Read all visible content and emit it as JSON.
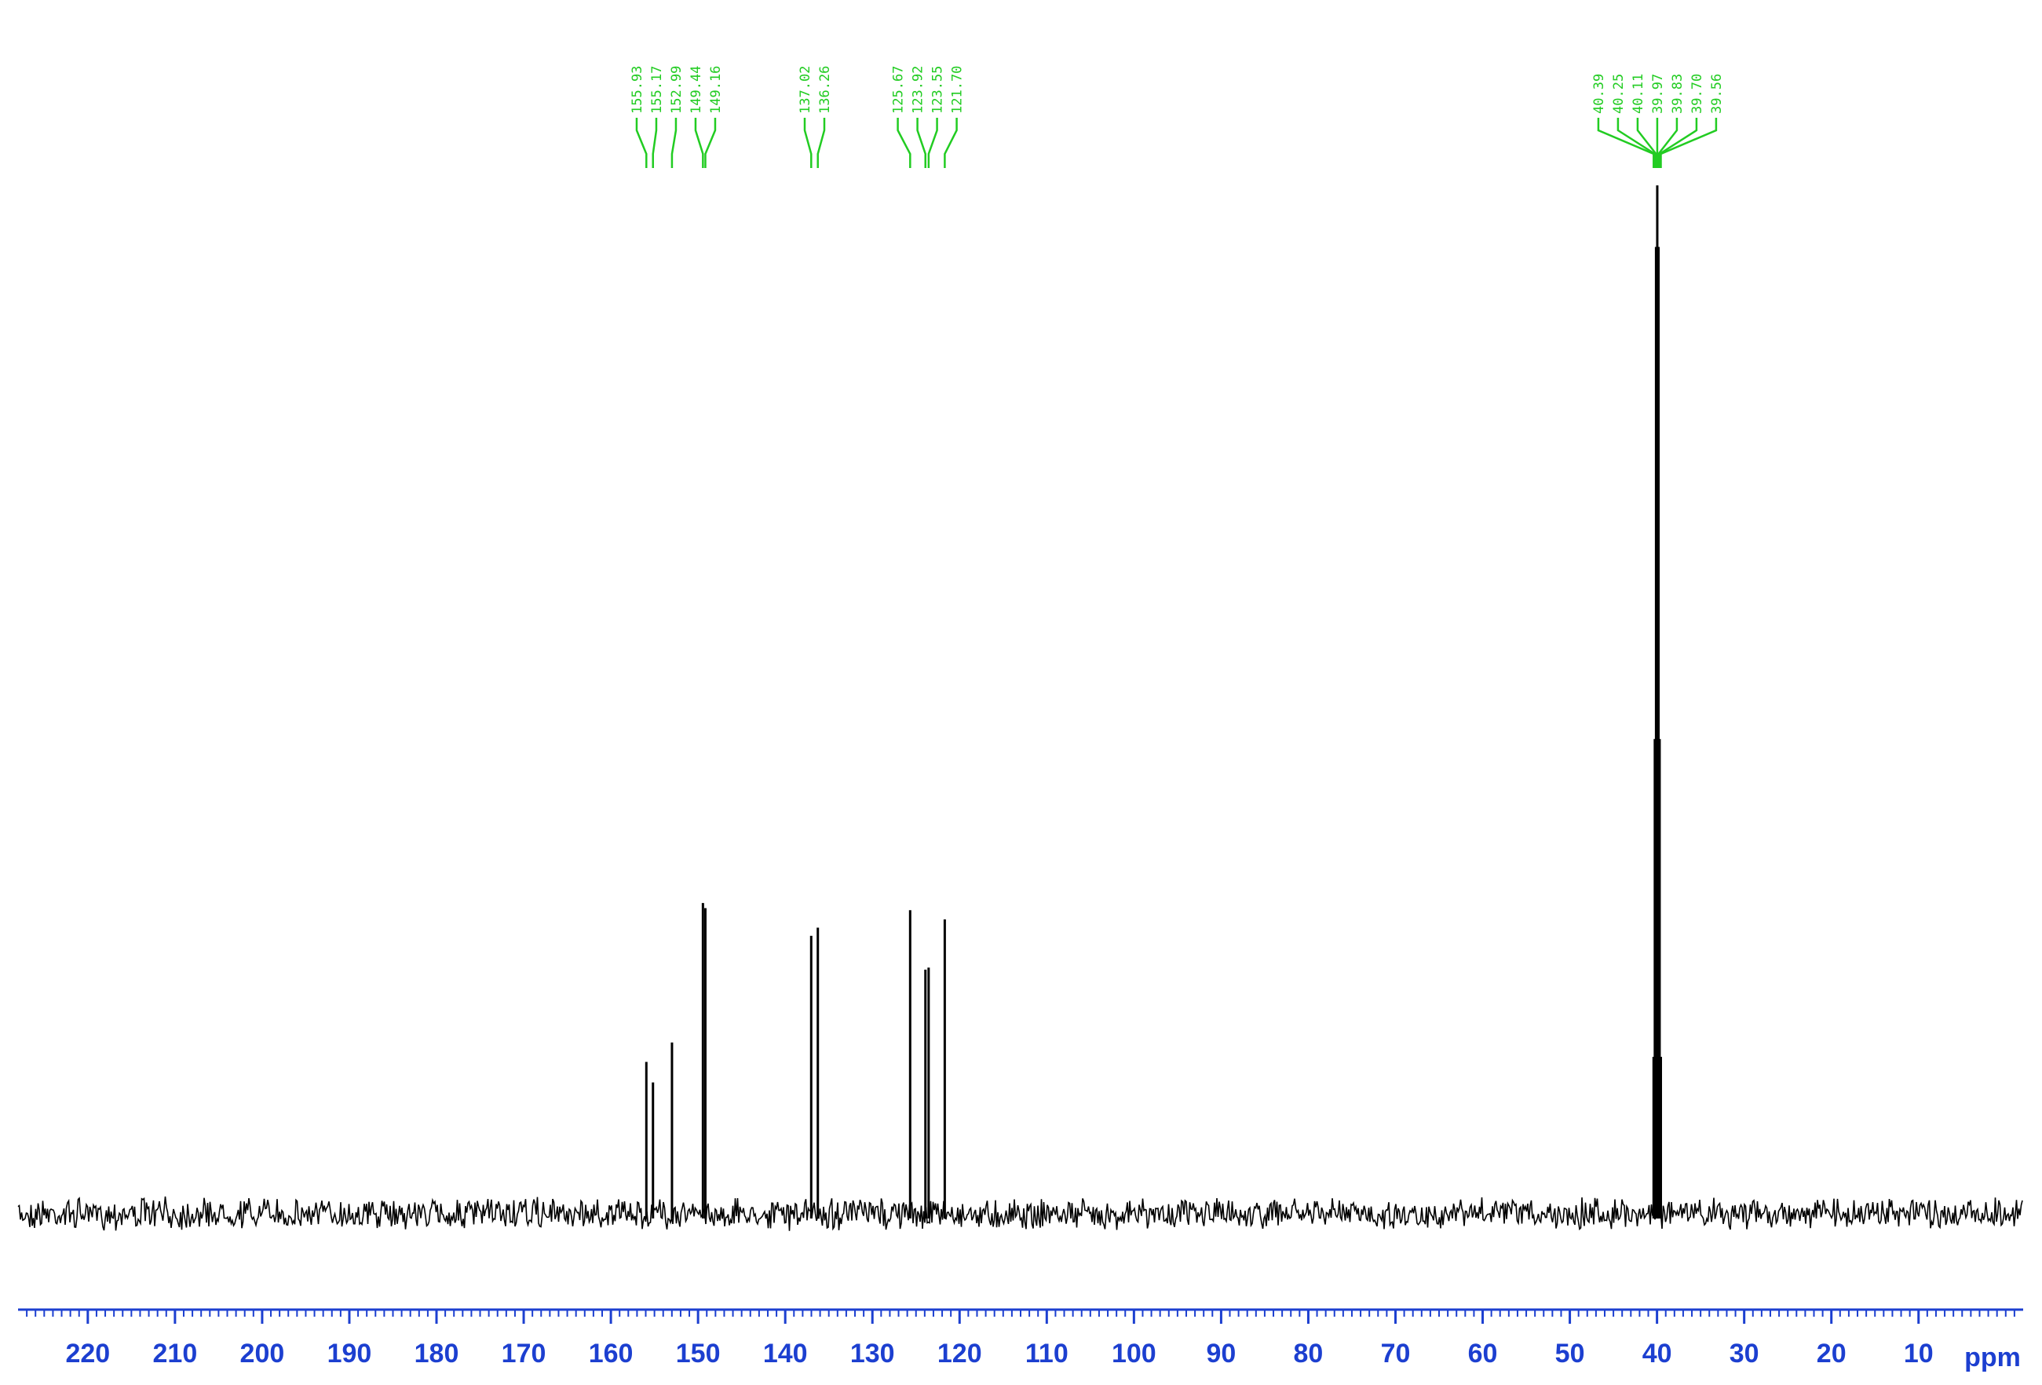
{
  "chart_data": {
    "type": "spectrum",
    "x_axis_label": "ppm",
    "x": [
      155.93,
      155.17,
      152.99,
      149.44,
      149.16,
      137.02,
      136.26,
      125.67,
      123.92,
      123.55,
      121.7,
      40.39,
      40.25,
      40.11,
      39.97,
      39.83,
      39.7,
      39.56
    ],
    "x_labels": [
      "155.93",
      "155.17",
      "152.99",
      "149.44",
      "149.16",
      "137.02",
      "136.26",
      "125.67",
      "123.92",
      "123.55",
      "121.70",
      "40.39",
      "40.25",
      "40.11",
      "39.97",
      "39.83",
      "39.70",
      "39.56"
    ],
    "values": [
      14.5,
      12.5,
      16.4,
      30,
      29.5,
      26.8,
      27.6,
      29.3,
      23.5,
      23.7,
      28.4,
      15,
      46,
      94,
      100,
      94,
      46,
      15
    ],
    "color": "#000000",
    "label_color": "#22cc22",
    "axis_color": "#1c3fd0",
    "xlim": [
      228,
      -2
    ],
    "ylim": [
      -3,
      102
    ],
    "xticks": [
      220,
      210,
      200,
      190,
      180,
      170,
      160,
      150,
      140,
      130,
      120,
      110,
      100,
      90,
      80,
      70,
      60,
      50,
      40,
      30,
      20,
      10
    ],
    "xminorticks": [
      227,
      226,
      225,
      224,
      223,
      222,
      221,
      220,
      219,
      218,
      217,
      216,
      215,
      214,
      213,
      212,
      211,
      210,
      209,
      208,
      207,
      206,
      205,
      204,
      203,
      202,
      201,
      200,
      199,
      198,
      197,
      196,
      195,
      194,
      193,
      192,
      191,
      190,
      189,
      188,
      187,
      186,
      185,
      184,
      183,
      182,
      181,
      180,
      179,
      178,
      177,
      176,
      175,
      174,
      173,
      172,
      171,
      170,
      169,
      168,
      167,
      166,
      165,
      164,
      163,
      162,
      161,
      160,
      159,
      158,
      157,
      156,
      155,
      154,
      153,
      152,
      151,
      150,
      149,
      148,
      147,
      146,
      145,
      144,
      143,
      142,
      141,
      140,
      139,
      138,
      137,
      136,
      135,
      134,
      133,
      132,
      131,
      130,
      129,
      128,
      127,
      126,
      125,
      124,
      123,
      122,
      121,
      120,
      119,
      118,
      117,
      116,
      115,
      114,
      113,
      112,
      111,
      110,
      109,
      108,
      107,
      106,
      105,
      104,
      103,
      102,
      101,
      100,
      99,
      98,
      97,
      96,
      95,
      94,
      93,
      92,
      91,
      90,
      89,
      88,
      87,
      86,
      85,
      84,
      83,
      82,
      81,
      80,
      79,
      78,
      77,
      76,
      75,
      74,
      73,
      72,
      71,
      70,
      69,
      68,
      67,
      66,
      65,
      64,
      63,
      62,
      61,
      60,
      59,
      58,
      57,
      56,
      55,
      54,
      53,
      52,
      51,
      50,
      49,
      48,
      47,
      46,
      45,
      44,
      43,
      42,
      41,
      40,
      39,
      38,
      37,
      36,
      35,
      34,
      33,
      32,
      31,
      30,
      29,
      28,
      27,
      26,
      25,
      24,
      23,
      22,
      21,
      20,
      19,
      18,
      17,
      16,
      15,
      14,
      13,
      12,
      11,
      10,
      9,
      8,
      7,
      6,
      5,
      4,
      3,
      2,
      1,
      0,
      -1
    ]
  }
}
